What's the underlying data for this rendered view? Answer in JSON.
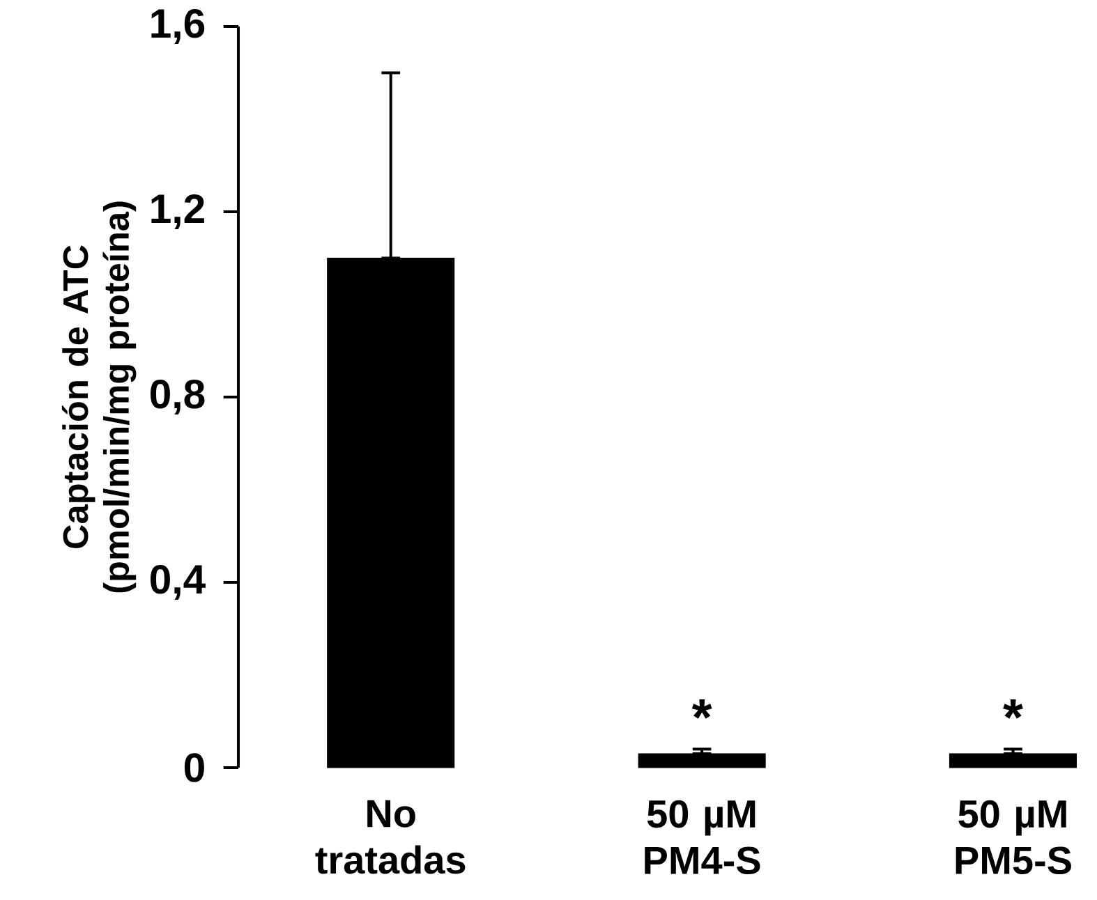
{
  "chart_data": {
    "type": "bar",
    "ylabel": "Captación de ATC (pmol/min/mg proteína)",
    "categories": [
      "No tratadas",
      "50 µM PM4-S",
      "50 µM PM5-S"
    ],
    "values": [
      1.1,
      0.03,
      0.03
    ],
    "errors": [
      [
        1.1,
        1.5
      ],
      [
        0.03,
        0.04
      ],
      [
        0.03,
        0.04
      ]
    ],
    "color": "#000000",
    "ylim": [
      0,
      1.6
    ],
    "yticks": [
      {
        "value": 0,
        "label": "0"
      },
      {
        "value": 0.4,
        "label": "0,4"
      },
      {
        "value": 0.8,
        "label": "0,8"
      },
      {
        "value": 1.2,
        "label": "1,2"
      },
      {
        "value": 1.6,
        "label": "1,6"
      }
    ],
    "annotations": [
      "*",
      "*"
    ],
    "grid": false
  }
}
